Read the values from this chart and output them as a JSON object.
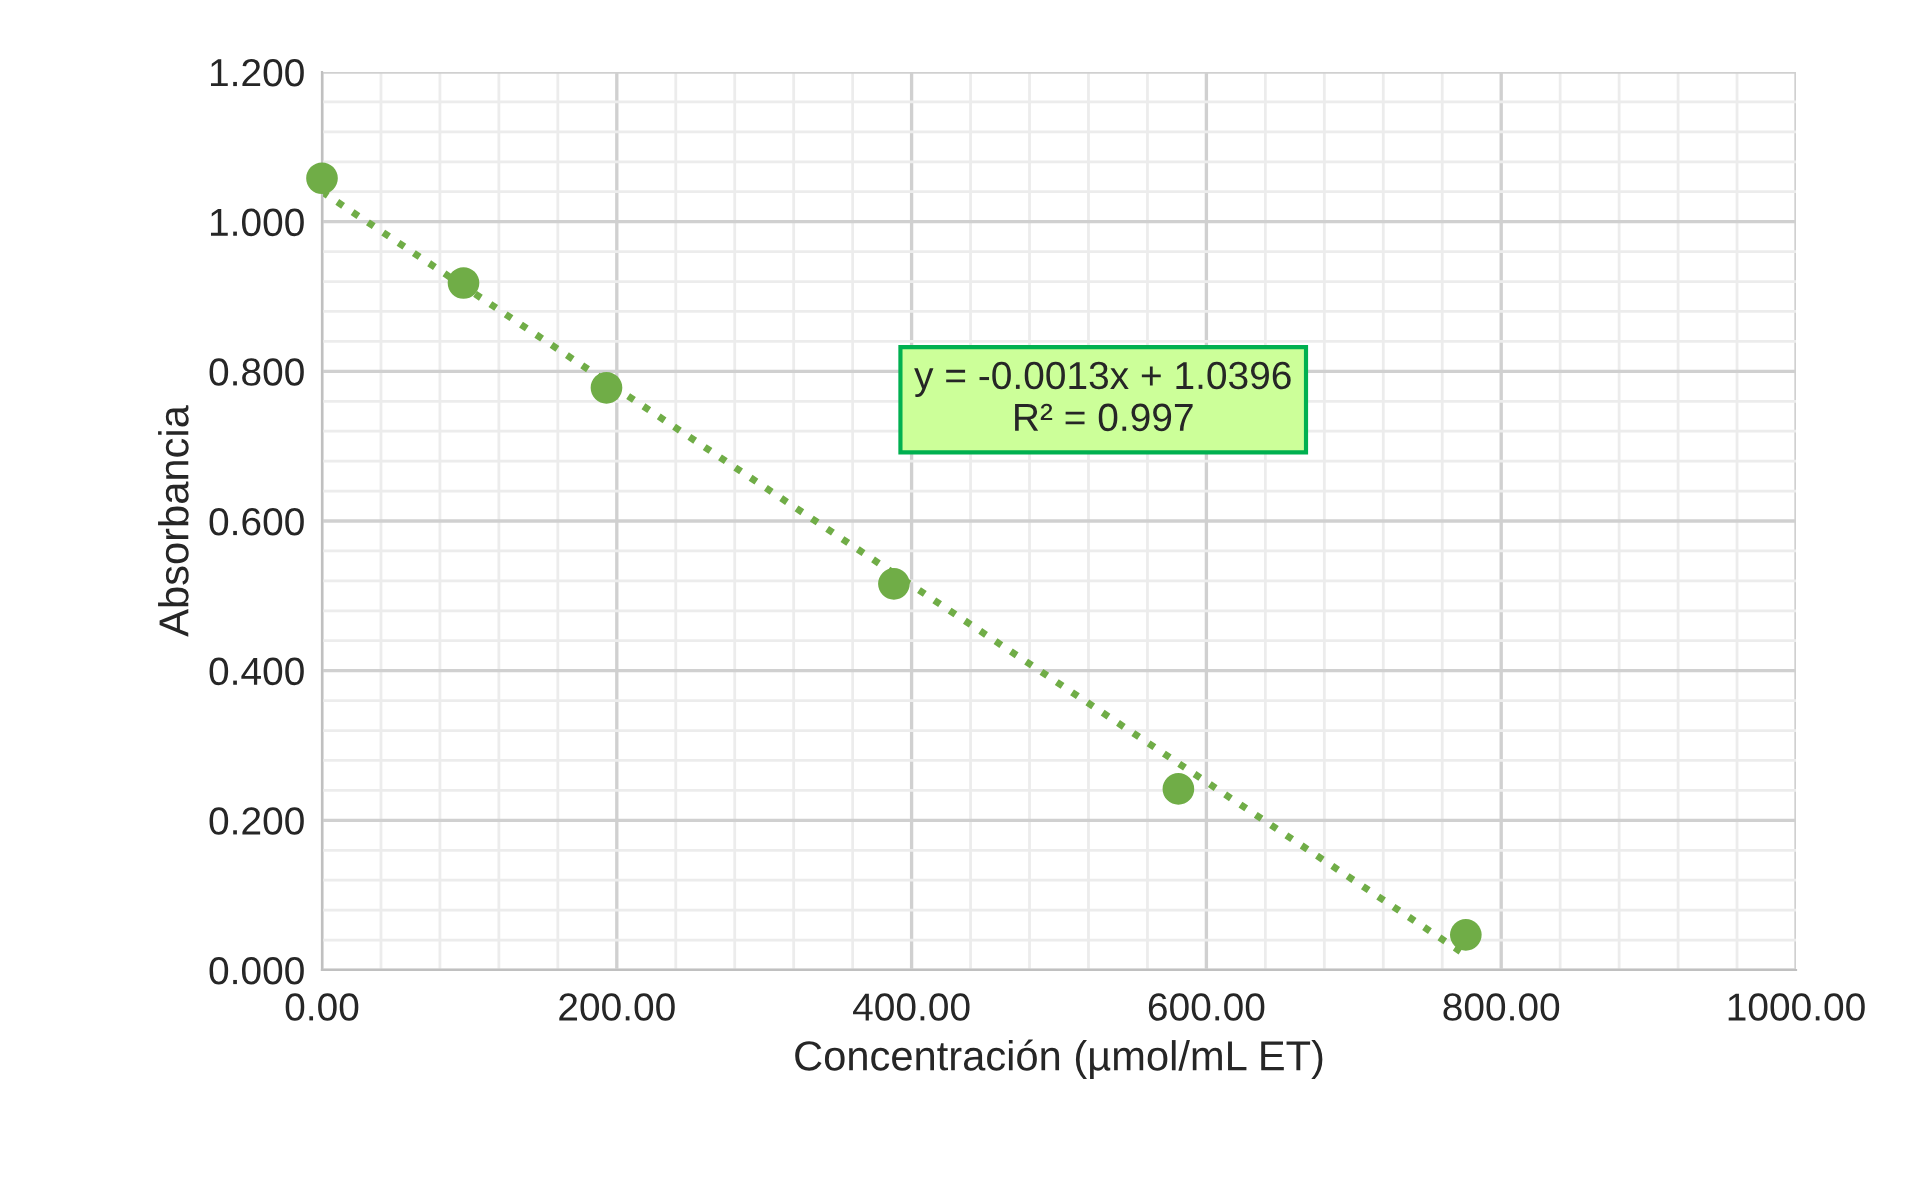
{
  "chart_data": {
    "type": "scatter",
    "xlabel": "Concentración (µmol/mL ET)",
    "ylabel": "Absorbancia",
    "series": [
      {
        "color": "#70ad47",
        "marker": "circle",
        "x": [
          0,
          96,
          193,
          388,
          581,
          776
        ],
        "values": [
          1.058,
          0.918,
          0.778,
          0.516,
          0.242,
          0.047
        ]
      },
      {
        "type": "line",
        "color": "#70ad47",
        "line_style": "dotted",
        "marker": "none",
        "x": [
          0,
          776
        ],
        "values": [
          1.04,
          0.02
        ]
      }
    ],
    "annotations": [
      "y = -0.0013x + 1.0396\nR² = 0.997"
    ],
    "xlim": [
      0,
      1000
    ],
    "ylim": [
      0,
      1.2
    ],
    "xticks": [
      {
        "value": 0,
        "label": "0.00"
      },
      {
        "value": 200,
        "label": "200.00"
      },
      {
        "value": 400,
        "label": "400.00"
      },
      {
        "value": 600,
        "label": "600.00"
      },
      {
        "value": 800,
        "label": "800.00"
      },
      {
        "value": 1000,
        "label": "1000.00"
      }
    ],
    "yticks": [
      {
        "value": 0,
        "label": "0.000"
      },
      {
        "value": 0.2,
        "label": "0.200"
      },
      {
        "value": 0.4,
        "label": "0.400"
      },
      {
        "value": 0.6,
        "label": "0.600"
      },
      {
        "value": 0.8,
        "label": "0.800"
      },
      {
        "value": 1.0,
        "label": "1.000"
      },
      {
        "value": 1.2,
        "label": "1.200"
      }
    ],
    "grid": true
  }
}
